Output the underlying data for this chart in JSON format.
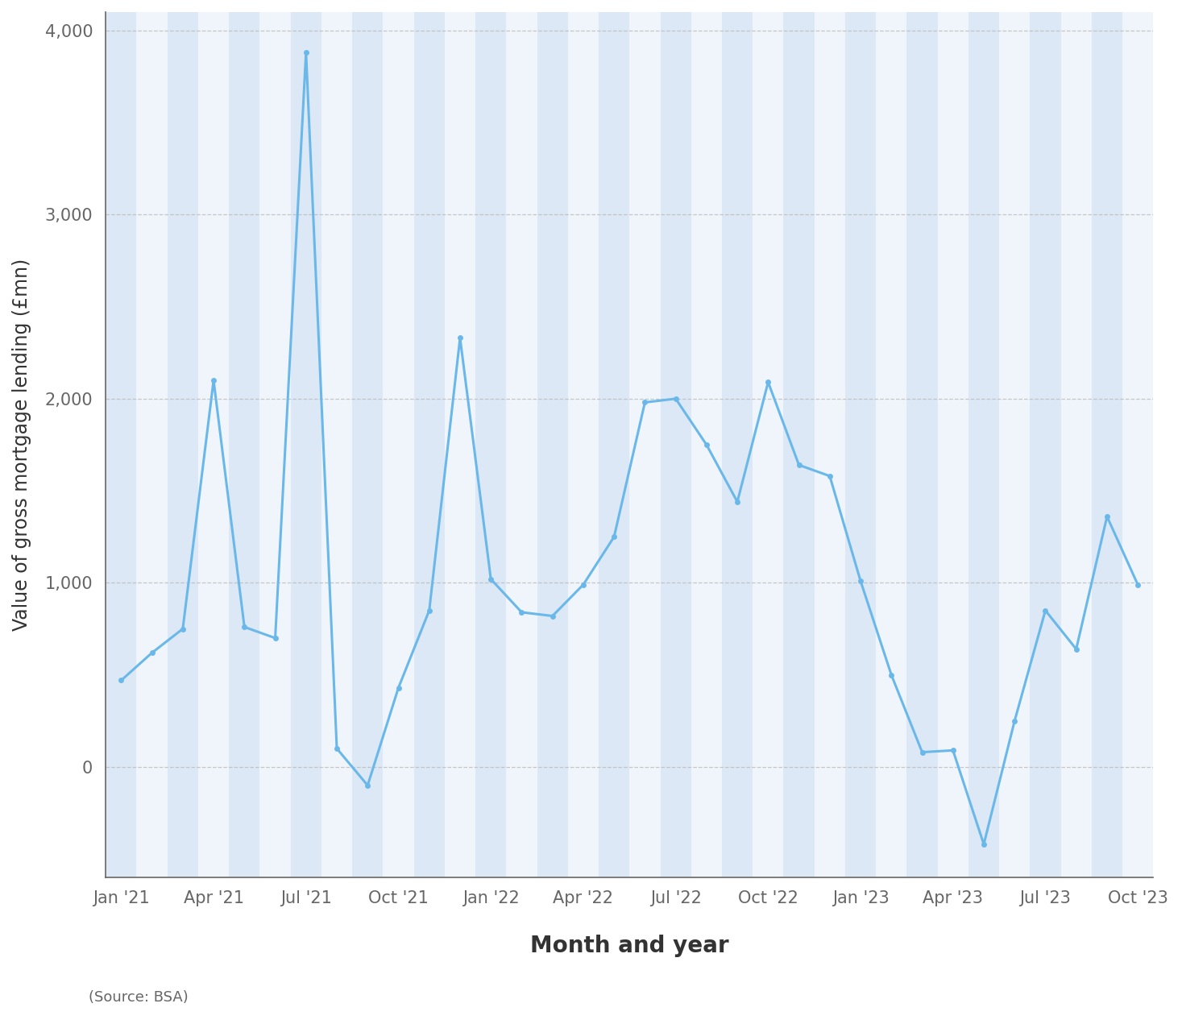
{
  "ylabel": "Value of gross mortgage lending (£mn)",
  "xlabel": "Month and year",
  "source": "(Source: BSA)",
  "line_color": "#6ab8ea",
  "marker_color": "#6ab8ea",
  "background_color": "#ffffff",
  "grid_color": "#bbbbbb",
  "band_color_light": "#dce8f5",
  "band_color_white": "#f0f5fb",
  "ylim_bottom": -600,
  "ylim_top": 4100,
  "yticks": [
    0,
    1000,
    2000,
    3000,
    4000
  ],
  "ytick_labels": [
    "0",
    "1,000",
    "2,000",
    "3,000",
    "4,000"
  ],
  "x_labels": [
    "Jan '21",
    "Apr '21",
    "Jul '21",
    "Oct '21",
    "Jan '22",
    "Apr '22",
    "Jul '22",
    "Oct '22",
    "Jan '23",
    "Apr '23",
    "Jul '23",
    "Oct '23"
  ],
  "x_tick_positions": [
    0,
    3,
    6,
    9,
    12,
    15,
    18,
    21,
    24,
    27,
    30,
    33
  ],
  "values": [
    470,
    620,
    750,
    2100,
    760,
    700,
    3880,
    100,
    -100,
    430,
    850,
    2330,
    1020,
    840,
    820,
    990,
    1250,
    1980,
    2000,
    1750,
    1440,
    2090,
    1640,
    1580,
    1010,
    500,
    80,
    90,
    -420,
    250,
    850,
    640,
    1360,
    990
  ],
  "line_width": 2.2,
  "marker_size": 5,
  "xlabel_fontsize": 20,
  "ylabel_fontsize": 17,
  "tick_fontsize": 15,
  "source_fontsize": 13
}
